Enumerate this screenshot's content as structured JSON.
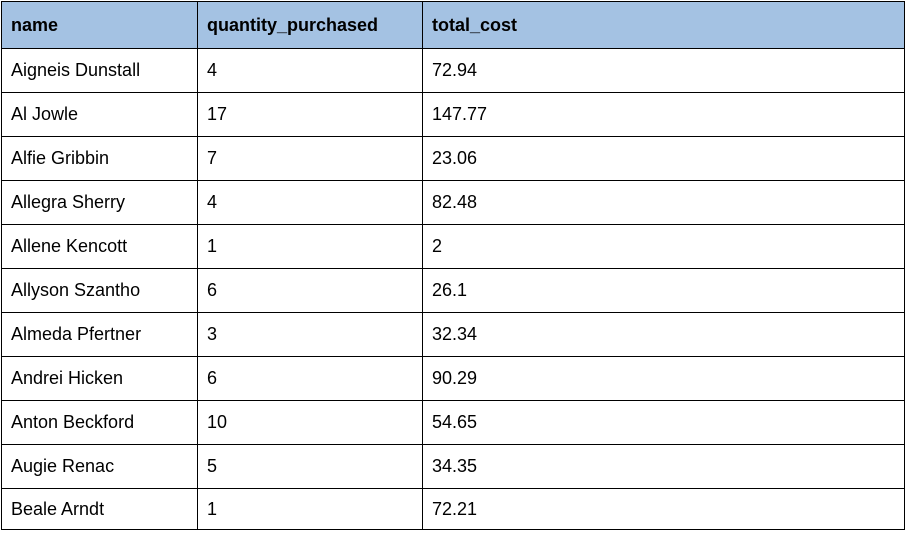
{
  "table": {
    "headers": [
      "name",
      "quantity_purchased",
      "total_cost"
    ],
    "rows": [
      [
        "Aigneis Dunstall",
        "4",
        "72.94"
      ],
      [
        "Al Jowle",
        "17",
        "147.77"
      ],
      [
        "Alfie Gribbin",
        "7",
        "23.06"
      ],
      [
        "Allegra Sherry",
        "4",
        "82.48"
      ],
      [
        "Allene Kencott",
        "1",
        "2"
      ],
      [
        "Allyson Szantho",
        "6",
        "26.1"
      ],
      [
        "Almeda Pfertner",
        "3",
        "32.34"
      ],
      [
        "Andrei Hicken",
        "6",
        "90.29"
      ],
      [
        "Anton Beckford",
        "10",
        "54.65"
      ],
      [
        "Augie Renac",
        "5",
        "34.35"
      ],
      [
        "Beale Arndt",
        "1",
        "72.21"
      ]
    ]
  },
  "colors": {
    "header_background": "#a4c2e3",
    "border": "#000000",
    "cell_background": "#ffffff"
  }
}
